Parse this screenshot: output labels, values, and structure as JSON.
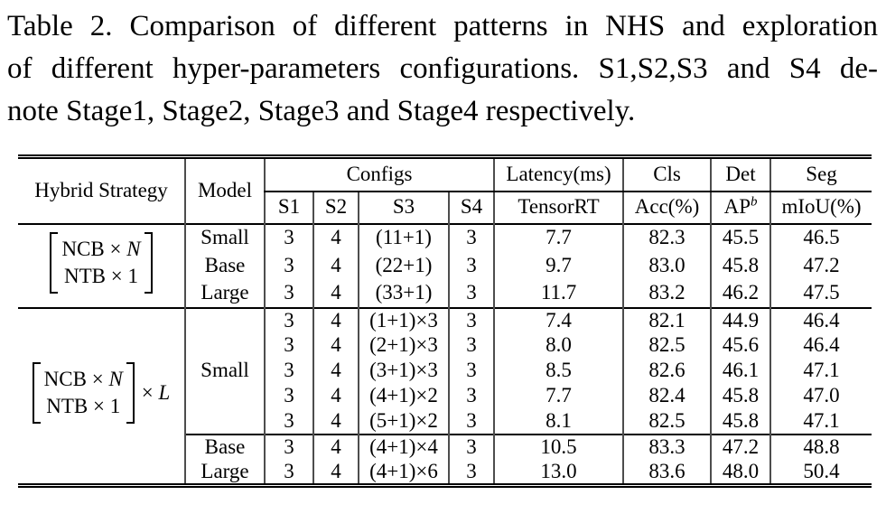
{
  "caption": {
    "lines": [
      "Table 2. Comparison of different patterns in NHS and exploration",
      "of different hyper-parameters configurations. S1,S2,S3 and S4 de-",
      "note Stage1, Stage2, Stage3 and Stage4 respectively."
    ]
  },
  "table": {
    "header": {
      "hybrid_strategy": "Hybrid Strategy",
      "model": "Model",
      "configs": "Configs",
      "latency": "Latency(ms)",
      "cls": "Cls",
      "det": "Det",
      "seg": "Seg",
      "s1": "S1",
      "s2": "S2",
      "s3": "S3",
      "s4": "S4",
      "tensorrt": "TensorRT",
      "acc": "Acc(%)",
      "ap_base": "AP",
      "ap_sup": "b",
      "miou": "mIoU(%)"
    },
    "strategy1": {
      "r1": {
        "name": "NCB",
        "times": "×",
        "var": "N"
      },
      "r2": {
        "name": "NTB",
        "times": "×",
        "var": "1"
      }
    },
    "strategy2": {
      "r1": {
        "name": "NCB",
        "times": "×",
        "var": "N"
      },
      "r2": {
        "name": "NTB",
        "times": "×",
        "var": "1"
      },
      "times": "×",
      "factor": "L"
    },
    "block1": {
      "rows": [
        {
          "model": "Small",
          "s1": "3",
          "s2": "4",
          "s3": "(11+1)",
          "s4": "3",
          "latency": "7.7",
          "acc": "82.3",
          "ap": "45.5",
          "miou": "46.5"
        },
        {
          "model": "Base",
          "s1": "3",
          "s2": "4",
          "s3": "(22+1)",
          "s4": "3",
          "latency": "9.7",
          "acc": "83.0",
          "ap": "45.8",
          "miou": "47.2"
        },
        {
          "model": "Large",
          "s1": "3",
          "s2": "4",
          "s3": "(33+1)",
          "s4": "3",
          "latency": "11.7",
          "acc": "83.2",
          "ap": "46.2",
          "miou": "47.5"
        }
      ]
    },
    "block2": {
      "model": "Small",
      "rows": [
        {
          "s1": "3",
          "s2": "4",
          "s3": "(1+1)×3",
          "s4": "3",
          "latency": "7.4",
          "acc": "82.1",
          "ap": "44.9",
          "miou": "46.4"
        },
        {
          "s1": "3",
          "s2": "4",
          "s3": "(2+1)×3",
          "s4": "3",
          "latency": "8.0",
          "acc": "82.5",
          "ap": "45.6",
          "miou": "46.4"
        },
        {
          "s1": "3",
          "s2": "4",
          "s3": "(3+1)×3",
          "s4": "3",
          "latency": "8.5",
          "acc": "82.6",
          "ap": "46.1",
          "miou": "47.1"
        },
        {
          "s1": "3",
          "s2": "4",
          "s3": "(4+1)×2",
          "s4": "3",
          "latency": "7.7",
          "acc": "82.4",
          "ap": "45.8",
          "miou": "47.0"
        },
        {
          "s1": "3",
          "s2": "4",
          "s3": "(5+1)×2",
          "s4": "3",
          "latency": "8.1",
          "acc": "82.5",
          "ap": "45.8",
          "miou": "47.1"
        }
      ],
      "tail": [
        {
          "model": "Base",
          "s1": "3",
          "s2": "4",
          "s3": "(4+1)×4",
          "s4": "3",
          "latency": "10.5",
          "acc": "83.3",
          "ap": "47.2",
          "miou": "48.8"
        },
        {
          "model": "Large",
          "s1": "3",
          "s2": "4",
          "s3": "(4+1)×6",
          "s4": "3",
          "latency": "13.0",
          "acc": "83.6",
          "ap": "48.0",
          "miou": "50.4"
        }
      ]
    }
  }
}
